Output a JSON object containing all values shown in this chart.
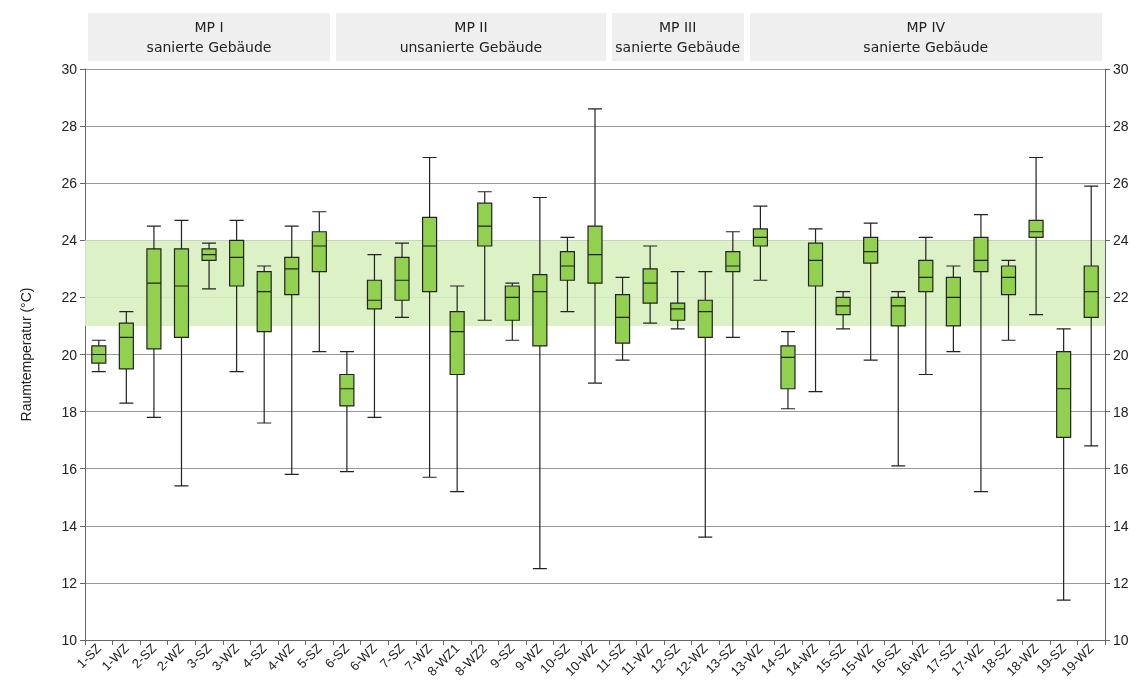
{
  "chart_data": {
    "type": "box",
    "ylabel": "Raumtemperatur (°C)",
    "annotations": [
      "MP I\nsanierte Gebäude",
      "MP II\nunsanierte Gebäude",
      "MP III\nsanierte Gebäude",
      "MP IV\nsanierte Gebäude"
    ],
    "categories": [
      "1-SZ",
      "1-WZ",
      "2-SZ",
      "2-WZ",
      "3-SZ",
      "3-WZ",
      "4-SZ",
      "4-WZ",
      "5-SZ",
      "6-SZ",
      "6-WZ",
      "7-SZ",
      "7-WZ",
      "8-WZ1",
      "8-WZ2",
      "9-SZ",
      "9-WZ",
      "10-SZ",
      "10-WZ",
      "11-SZ",
      "11-WZ",
      "12-SZ",
      "12-WZ",
      "13-SZ",
      "13-WZ",
      "14-SZ",
      "14-WZ",
      "15-SZ",
      "15-WZ",
      "16-SZ",
      "16-WZ",
      "17-SZ",
      "17-WZ",
      "18-SZ",
      "18-WZ",
      "19-SZ",
      "19-WZ"
    ],
    "series": [
      {
        "color": "#92d050",
        "boxes": [
          {
            "low": 19.4,
            "q1": 19.7,
            "median": 20.0,
            "q3": 20.3,
            "high": 20.5
          },
          {
            "low": 18.3,
            "q1": 19.5,
            "median": 20.6,
            "q3": 21.1,
            "high": 21.5
          },
          {
            "low": 17.8,
            "q1": 20.2,
            "median": 22.5,
            "q3": 23.7,
            "high": 24.5
          },
          {
            "low": 15.4,
            "q1": 20.6,
            "median": 22.4,
            "q3": 23.7,
            "high": 24.7
          },
          {
            "low": 22.3,
            "q1": 23.3,
            "median": 23.5,
            "q3": 23.7,
            "high": 23.9
          },
          {
            "low": 19.4,
            "q1": 22.4,
            "median": 23.4,
            "q3": 24.0,
            "high": 24.7
          },
          {
            "low": 17.6,
            "q1": 20.8,
            "median": 22.2,
            "q3": 22.9,
            "high": 23.1
          },
          {
            "low": 15.8,
            "q1": 22.1,
            "median": 23.0,
            "q3": 23.4,
            "high": 24.5
          },
          {
            "low": 20.1,
            "q1": 22.9,
            "median": 23.8,
            "q3": 24.3,
            "high": 25.0
          },
          {
            "low": 15.9,
            "q1": 18.2,
            "median": 18.8,
            "q3": 19.3,
            "high": 20.1
          },
          {
            "low": 17.8,
            "q1": 21.6,
            "median": 21.9,
            "q3": 22.6,
            "high": 23.5
          },
          {
            "low": 21.3,
            "q1": 21.9,
            "median": 22.6,
            "q3": 23.4,
            "high": 23.9
          },
          {
            "low": 15.7,
            "q1": 22.2,
            "median": 23.8,
            "q3": 24.8,
            "high": 26.9
          },
          {
            "low": 15.2,
            "q1": 19.3,
            "median": 20.8,
            "q3": 21.5,
            "high": 22.4
          },
          {
            "low": 21.2,
            "q1": 23.8,
            "median": 24.5,
            "q3": 25.3,
            "high": 25.7
          },
          {
            "low": 20.5,
            "q1": 21.2,
            "median": 22.0,
            "q3": 22.4,
            "high": 22.5
          },
          {
            "low": 12.5,
            "q1": 20.3,
            "median": 22.2,
            "q3": 22.8,
            "high": 25.5
          },
          {
            "low": 21.5,
            "q1": 22.6,
            "median": 23.1,
            "q3": 23.6,
            "high": 24.1
          },
          {
            "low": 19.0,
            "q1": 22.5,
            "median": 23.5,
            "q3": 24.5,
            "high": 28.6
          },
          {
            "low": 19.8,
            "q1": 20.4,
            "median": 21.3,
            "q3": 22.1,
            "high": 22.7
          },
          {
            "low": 21.1,
            "q1": 21.8,
            "median": 22.5,
            "q3": 23.0,
            "high": 23.8
          },
          {
            "low": 20.9,
            "q1": 21.2,
            "median": 21.6,
            "q3": 21.8,
            "high": 22.9
          },
          {
            "low": 13.6,
            "q1": 20.6,
            "median": 21.5,
            "q3": 21.9,
            "high": 22.9
          },
          {
            "low": 20.6,
            "q1": 22.9,
            "median": 23.1,
            "q3": 23.6,
            "high": 24.3
          },
          {
            "low": 22.6,
            "q1": 23.8,
            "median": 24.1,
            "q3": 24.4,
            "high": 25.2
          },
          {
            "low": 18.1,
            "q1": 18.8,
            "median": 19.9,
            "q3": 20.3,
            "high": 20.8
          },
          {
            "low": 18.7,
            "q1": 22.4,
            "median": 23.3,
            "q3": 23.9,
            "high": 24.4
          },
          {
            "low": 20.9,
            "q1": 21.4,
            "median": 21.7,
            "q3": 22.0,
            "high": 22.2
          },
          {
            "low": 19.8,
            "q1": 23.2,
            "median": 23.6,
            "q3": 24.1,
            "high": 24.6
          },
          {
            "low": 16.1,
            "q1": 21.0,
            "median": 21.7,
            "q3": 22.0,
            "high": 22.2
          },
          {
            "low": 19.3,
            "q1": 22.2,
            "median": 22.7,
            "q3": 23.3,
            "high": 24.1
          },
          {
            "low": 20.1,
            "q1": 21.0,
            "median": 22.0,
            "q3": 22.7,
            "high": 23.1
          },
          {
            "low": 15.2,
            "q1": 22.9,
            "median": 23.3,
            "q3": 24.1,
            "high": 24.9
          },
          {
            "low": 20.5,
            "q1": 22.1,
            "median": 22.7,
            "q3": 23.1,
            "high": 23.3
          },
          {
            "low": 21.4,
            "q1": 24.1,
            "median": 24.3,
            "q3": 24.7,
            "high": 26.9
          },
          {
            "low": 11.4,
            "q1": 17.1,
            "median": 18.8,
            "q3": 20.1,
            "high": 20.9
          },
          {
            "low": 16.8,
            "q1": 21.3,
            "median": 22.2,
            "q3": 23.1,
            "high": 25.9
          }
        ]
      }
    ],
    "ylim": [
      10,
      30
    ],
    "yticks": [
      10,
      12,
      14,
      16,
      18,
      20,
      22,
      24,
      26,
      28,
      30
    ],
    "y2lim": [
      10,
      30
    ],
    "y2ticks": [
      10,
      12,
      14,
      16,
      18,
      20,
      22,
      24,
      26,
      28,
      30
    ],
    "bands": [
      {
        "axis": "y",
        "from": 21,
        "to": 24,
        "color": "#d9f0c0"
      }
    ],
    "grid": "y"
  }
}
